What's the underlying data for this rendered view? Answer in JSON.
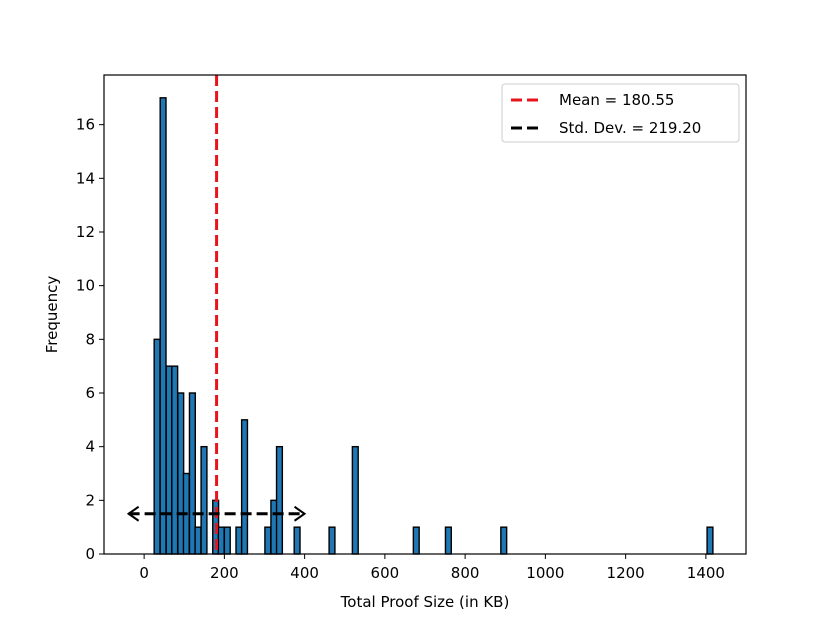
{
  "chart_data": {
    "type": "histogram",
    "title": "",
    "xlabel": "Total Proof Size (in KB)",
    "ylabel": "Frequency",
    "xlim": [
      -100,
      1500
    ],
    "ylim": [
      0,
      17.85
    ],
    "xticks": [
      0,
      200,
      400,
      600,
      800,
      1000,
      1200,
      1400
    ],
    "yticks": [
      0,
      2,
      4,
      6,
      8,
      10,
      12,
      14,
      16
    ],
    "bin_width": 14.5,
    "bins": [
      {
        "start": 25,
        "count": 8
      },
      {
        "start": 40,
        "count": 17
      },
      {
        "start": 55,
        "count": 7
      },
      {
        "start": 69,
        "count": 7
      },
      {
        "start": 84,
        "count": 6
      },
      {
        "start": 98,
        "count": 3
      },
      {
        "start": 113,
        "count": 6
      },
      {
        "start": 127,
        "count": 1
      },
      {
        "start": 142,
        "count": 4
      },
      {
        "start": 171,
        "count": 2
      },
      {
        "start": 185,
        "count": 1
      },
      {
        "start": 200,
        "count": 1
      },
      {
        "start": 229,
        "count": 1
      },
      {
        "start": 243,
        "count": 5
      },
      {
        "start": 301,
        "count": 1
      },
      {
        "start": 316,
        "count": 2
      },
      {
        "start": 330,
        "count": 4
      },
      {
        "start": 374,
        "count": 1
      },
      {
        "start": 461,
        "count": 1
      },
      {
        "start": 519,
        "count": 4
      },
      {
        "start": 671,
        "count": 1
      },
      {
        "start": 751,
        "count": 1
      },
      {
        "start": 889,
        "count": 1
      },
      {
        "start": 1403,
        "count": 1
      }
    ],
    "mean": 180.55,
    "std_dev": 219.2,
    "std_dev_bar": {
      "y": 1.5,
      "from": -38.65,
      "to": 399.75
    },
    "legend": [
      {
        "label": "Mean = 180.55",
        "color": "#e8141b",
        "style": "dashed"
      },
      {
        "label": "Std. Dev. = 219.20",
        "color": "#000000",
        "style": "dashed"
      }
    ],
    "legend_position": "upper right",
    "bar_color": "#1f77b4",
    "bar_edge_color": "#000000"
  }
}
